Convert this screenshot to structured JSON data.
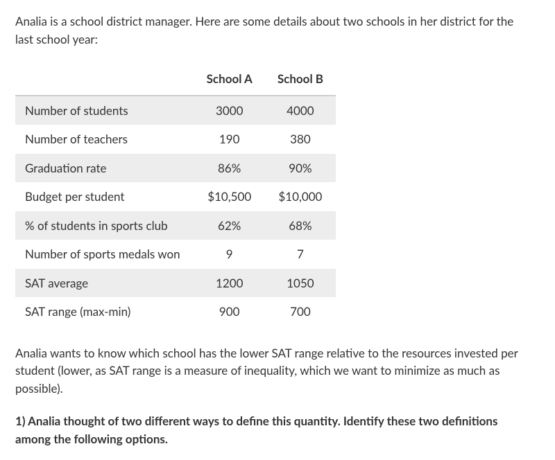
{
  "intro": "Analia is a school district manager. Here are some details about two schools in her district for the last school year:",
  "table": {
    "columns": [
      "School A",
      "School B"
    ],
    "rows": [
      {
        "label": "Number of students",
        "a": "3000",
        "b": "4000"
      },
      {
        "label": "Number of teachers",
        "a": "190",
        "b": "380"
      },
      {
        "label": "Graduation rate",
        "a": "86%",
        "b": "90%"
      },
      {
        "label": "Budget per student",
        "a": "$10,500",
        "b": "$10,000"
      },
      {
        "label": "% of students in sports club",
        "a": "62%",
        "b": "68%"
      },
      {
        "label": "Number of sports medals won",
        "a": "9",
        "b": "7"
      },
      {
        "label": "SAT average",
        "a": "1200",
        "b": "1050"
      },
      {
        "label": "SAT range (max-min)",
        "a": "900",
        "b": "700"
      }
    ],
    "header_bg": "#ffffff",
    "odd_row_bg": "#ededed",
    "even_row_bg": "#ffffff",
    "border_color": "#cfcfcf",
    "text_color": "#333333",
    "font_size": 17,
    "row_label_col_width": 250,
    "value_col_width": 90
  },
  "explain": "Analia wants to know which school has the lower SAT range relative to the resources invested per student (lower, as SAT range is a measure of inequality, which we want to minimize as much as possible).",
  "question": "1) Analia thought of two different ways to define this quantity. Identify these two definitions among the following options."
}
